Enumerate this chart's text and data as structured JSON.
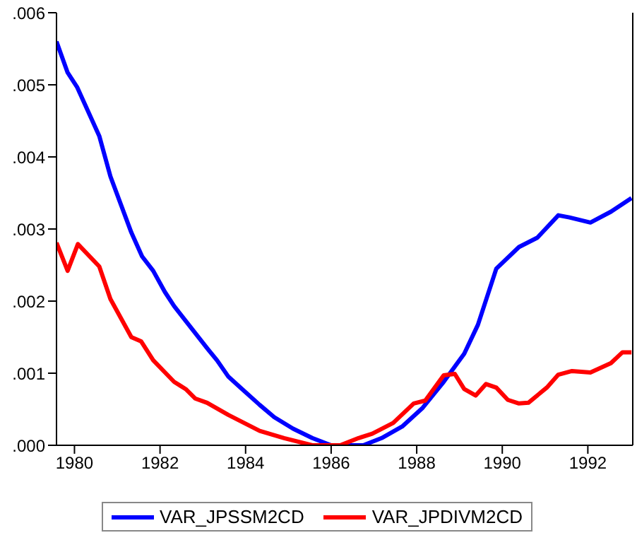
{
  "chart_data": {
    "type": "line",
    "xlim": [
      1979.58,
      1993.05
    ],
    "xticks": [
      1980,
      1982,
      1984,
      1986,
      1988,
      1990,
      1992
    ],
    "ylim": [
      0,
      0.006
    ],
    "yticks": [
      {
        "value": 0,
        "label": ".000"
      },
      {
        "value": 0.001,
        "label": ".001"
      },
      {
        "value": 0.002,
        "label": ".002"
      },
      {
        "value": 0.003,
        "label": ".003"
      },
      {
        "value": 0.004,
        "label": ".004"
      },
      {
        "value": 0.005,
        "label": ".005"
      },
      {
        "value": 0.006,
        "label": ".006"
      }
    ],
    "grid": false,
    "legend": "bottom",
    "marker": "none",
    "line_style": "solid",
    "series": [
      {
        "name": "VAR_JPSSM2CD",
        "color": "#0000ff",
        "x": [
          1979.58,
          1979.84,
          1980.06,
          1980.58,
          1980.84,
          1981.33,
          1981.58,
          1981.84,
          1982.11,
          1982.33,
          1983.11,
          1983.33,
          1983.6,
          1983.9,
          1984.33,
          1984.67,
          1985.11,
          1985.56,
          1986,
          1986.21,
          1986.75,
          1987.18,
          1987.66,
          1988.14,
          1988.63,
          1989.11,
          1989.43,
          1989.86,
          1990.39,
          1990.82,
          1991.31,
          1991.57,
          1992.06,
          1992.54,
          1993.02
        ],
        "values": [
          0.0056,
          0.00517,
          0.00497,
          0.00429,
          0.00373,
          0.00295,
          0.00262,
          0.00242,
          0.00213,
          0.00193,
          0.00134,
          0.00118,
          0.00095,
          0.00079,
          0.00056,
          0.00039,
          0.00023,
          0.0001,
          0,
          0,
          0,
          0.0001,
          0.00026,
          0.00052,
          0.00088,
          0.00127,
          0.00167,
          0.00245,
          0.00275,
          0.00288,
          0.00319,
          0.00316,
          0.00309,
          0.00324,
          0.00343
        ]
      },
      {
        "name": "VAR_JPDIVM2CD",
        "color": "#ff0000",
        "x": [
          1979.58,
          1979.84,
          1980.08,
          1980.58,
          1980.84,
          1981.33,
          1981.56,
          1981.84,
          1982.33,
          1982.6,
          1982.82,
          1983.1,
          1983.6,
          1983.9,
          1984.33,
          1984.9,
          1985.56,
          1986.21,
          1986.64,
          1986.96,
          1987.45,
          1987.93,
          1988.2,
          1988.63,
          1988.89,
          1989.11,
          1989.38,
          1989.62,
          1989.86,
          1990.13,
          1990.39,
          1990.61,
          1991.04,
          1991.31,
          1991.63,
          1992.06,
          1992.54,
          1992.81,
          1993.02
        ],
        "values": [
          0.00281,
          0.00242,
          0.00279,
          0.00248,
          0.00203,
          0.0015,
          0.00144,
          0.00118,
          0.00088,
          0.00078,
          0.00065,
          0.00059,
          0.00042,
          0.00033,
          0.0002,
          0.0001,
          0,
          0,
          0.0001,
          0.00016,
          0.00031,
          0.00058,
          0.00062,
          0.00097,
          0.00099,
          0.00078,
          0.00069,
          0.00085,
          0.0008,
          0.00063,
          0.00058,
          0.00059,
          0.0008,
          0.00098,
          0.00103,
          0.00101,
          0.00114,
          0.00129,
          0.00129
        ]
      }
    ]
  }
}
